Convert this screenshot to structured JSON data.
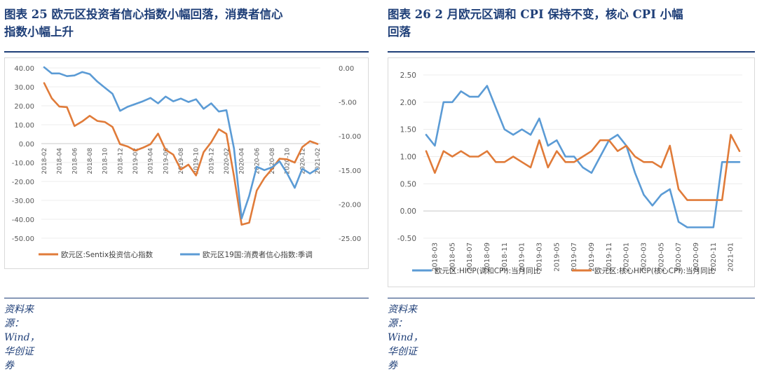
{
  "left": {
    "title_line1": "图表 25   欧元区投资者信心指数小幅回落，消费者信心",
    "title_line2": "指数小幅上升",
    "source": "资料来源：Wind，华创证券"
  },
  "right": {
    "title_line1": "图表 26   2 月欧元区调和 CPI 保持不变，核心 CPI 小幅",
    "title_line2": "回落",
    "source": "资料来源：Wind，华创证券"
  },
  "chart_data": [
    {
      "type": "line",
      "title": "",
      "dual_axis": true,
      "ylim_left": [
        -50,
        40
      ],
      "ylim_right": [
        -25,
        0
      ],
      "yticks_left": [
        "40.00",
        "30.00",
        "20.00",
        "10.00",
        "0.00",
        "-10.00",
        "-20.00",
        "-30.00",
        "-40.00",
        "-50.00"
      ],
      "yticks_right": [
        "0.00",
        "-5.00",
        "-10.00",
        "-15.00",
        "-20.00",
        "-25.00"
      ],
      "xticks": [
        "2018-02",
        "2018-04",
        "2018-06",
        "2018-08",
        "2018-10",
        "2018-12",
        "2019-02",
        "2019-04",
        "2019-06",
        "2019-08",
        "2019-10",
        "2019-12",
        "2020-02",
        "2020-04",
        "2020-06",
        "2020-08",
        "2020-10",
        "2020-12",
        "2021-02"
      ],
      "x": [
        "2018-02",
        "2018-03",
        "2018-04",
        "2018-05",
        "2018-06",
        "2018-07",
        "2018-08",
        "2018-09",
        "2018-10",
        "2018-11",
        "2018-12",
        "2019-01",
        "2019-02",
        "2019-03",
        "2019-04",
        "2019-05",
        "2019-06",
        "2019-07",
        "2019-08",
        "2019-09",
        "2019-10",
        "2019-11",
        "2019-12",
        "2020-01",
        "2020-02",
        "2020-03",
        "2020-04",
        "2020-05",
        "2020-06",
        "2020-07",
        "2020-08",
        "2020-09",
        "2020-10",
        "2020-11",
        "2020-12",
        "2021-01",
        "2021-02"
      ],
      "grid": "horizontal",
      "legend_position": "bottom",
      "series": [
        {
          "name": "欧元区:Sentix投资信心指数",
          "axis": "left",
          "color": "#e07b39",
          "values": [
            32.0,
            24.0,
            19.6,
            19.3,
            9.3,
            11.7,
            14.7,
            12.0,
            11.4,
            8.8,
            -0.3,
            -1.5,
            -3.7,
            -2.2,
            -0.3,
            5.3,
            -3.3,
            -5.8,
            -13.7,
            -11.1,
            -16.8,
            -4.5,
            0.7,
            7.6,
            5.2,
            -17.1,
            -42.9,
            -41.8,
            -24.8,
            -18.2,
            -13.4,
            -8.0,
            -8.3,
            -10.0,
            -1.8,
            1.3,
            -0.2
          ]
        },
        {
          "name": "欧元区19国:消费者信心指数:季调",
          "axis": "right",
          "color": "#5b9bd5",
          "values": [
            0.1,
            -0.8,
            -0.8,
            -1.2,
            -1.1,
            -0.6,
            -0.9,
            -2.0,
            -2.9,
            -3.8,
            -6.3,
            -5.7,
            -5.3,
            -4.9,
            -4.4,
            -5.2,
            -4.2,
            -4.9,
            -4.5,
            -5.0,
            -4.6,
            -6.0,
            -5.2,
            -6.4,
            -6.2,
            -11.8,
            -22.1,
            -18.8,
            -14.5,
            -15.0,
            -14.6,
            -13.7,
            -15.5,
            -17.6,
            -14.8,
            -15.5,
            -14.8
          ]
        }
      ]
    },
    {
      "type": "line",
      "title": "",
      "ylim": [
        -0.5,
        2.5
      ],
      "yticks": [
        "2.50",
        "2.00",
        "1.50",
        "1.00",
        "0.50",
        "0.00",
        "-0.50"
      ],
      "xticks": [
        "2018-03",
        "2018-05",
        "2018-07",
        "2018-09",
        "2018-11",
        "2019-01",
        "2019-03",
        "2019-05",
        "2019-07",
        "2019-09",
        "2019-11",
        "2020-01",
        "2020-03",
        "2020-05",
        "2020-07",
        "2020-09",
        "2020-11",
        "2021-01"
      ],
      "x": [
        "2018-02",
        "2018-03",
        "2018-04",
        "2018-05",
        "2018-06",
        "2018-07",
        "2018-08",
        "2018-09",
        "2018-10",
        "2018-11",
        "2018-12",
        "2019-01",
        "2019-02",
        "2019-03",
        "2019-04",
        "2019-05",
        "2019-06",
        "2019-07",
        "2019-08",
        "2019-09",
        "2019-10",
        "2019-11",
        "2019-12",
        "2020-01",
        "2020-02",
        "2020-03",
        "2020-04",
        "2020-05",
        "2020-06",
        "2020-07",
        "2020-08",
        "2020-09",
        "2020-10",
        "2020-11",
        "2020-12",
        "2021-01",
        "2021-02"
      ],
      "grid": "horizontal",
      "legend_position": "bottom",
      "series": [
        {
          "name": "欧元区:HICP(调和CPI):当月同比",
          "color": "#5b9bd5",
          "values": [
            1.4,
            1.2,
            2.0,
            2.0,
            2.2,
            2.1,
            2.1,
            2.3,
            1.9,
            1.5,
            1.4,
            1.5,
            1.4,
            1.7,
            1.2,
            1.3,
            1.0,
            1.0,
            0.8,
            0.7,
            1.0,
            1.3,
            1.4,
            1.2,
            0.7,
            0.3,
            0.1,
            0.3,
            0.4,
            -0.2,
            -0.3,
            -0.3,
            -0.3,
            -0.3,
            0.9,
            0.9,
            0.9
          ]
        },
        {
          "name": "欧元区:核心HICP(核心CPI):当月同比",
          "color": "#e07b39",
          "values": [
            1.1,
            0.7,
            1.1,
            1.0,
            1.1,
            1.0,
            1.0,
            1.1,
            0.9,
            0.9,
            1.0,
            0.9,
            0.8,
            1.3,
            0.8,
            1.1,
            0.9,
            0.9,
            1.0,
            1.1,
            1.3,
            1.3,
            1.1,
            1.2,
            1.0,
            0.9,
            0.9,
            0.8,
            1.2,
            0.4,
            0.2,
            0.2,
            0.2,
            0.2,
            0.2,
            1.4,
            1.1
          ]
        }
      ]
    }
  ]
}
